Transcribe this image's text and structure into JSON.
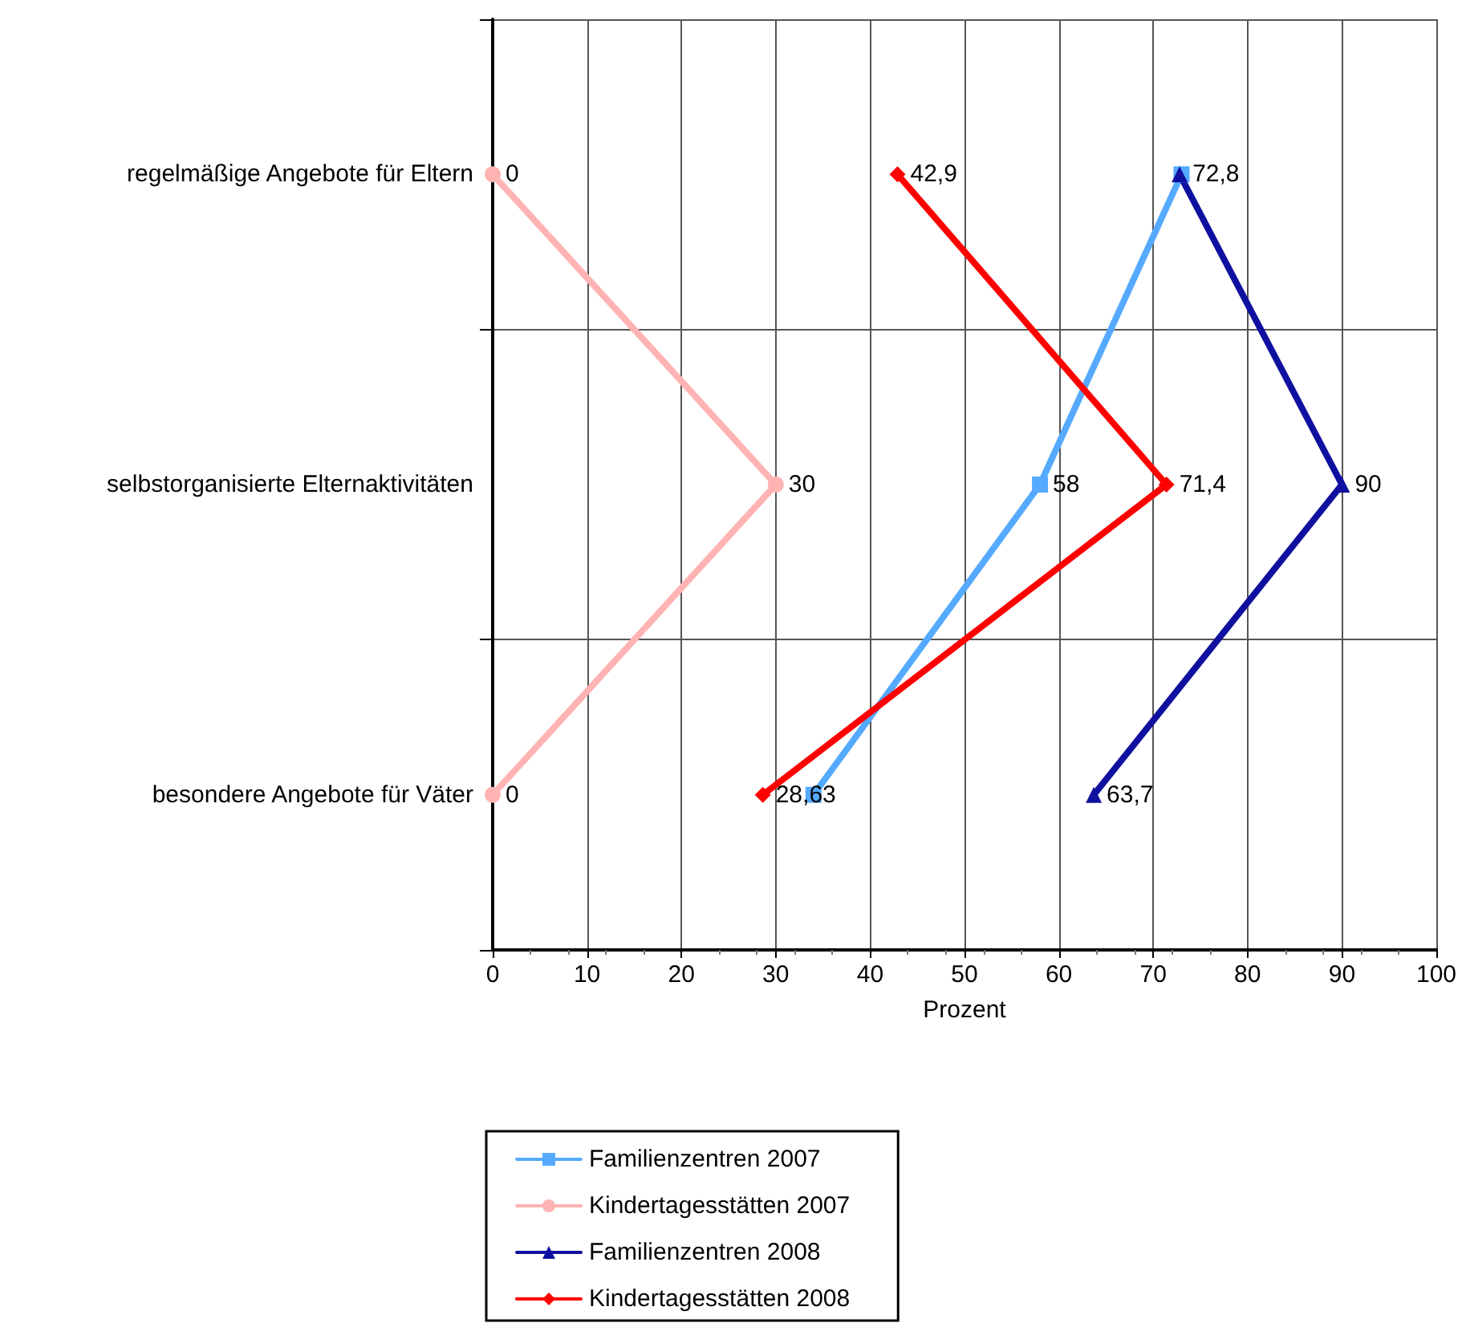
{
  "chart_data": {
    "type": "line",
    "orientation": "horizontal",
    "xlabel": "Prozent",
    "categories": [
      "regelmäßige Angebote für Eltern",
      "selbstorganisierte Elternaktivitäten",
      "besondere Angebote für Väter"
    ],
    "xlim": [
      0,
      100
    ],
    "xticks": [
      0,
      10,
      20,
      30,
      40,
      50,
      60,
      70,
      80,
      90,
      100
    ],
    "grid": true,
    "legend": "bottom",
    "series": [
      {
        "name": "Familienzentren 2007",
        "color": "#55aaff",
        "marker": "square",
        "values": [
          73,
          58,
          34
        ],
        "value_labels": [
          null,
          "58",
          null
        ]
      },
      {
        "name": "Kindertagesstätten 2007",
        "color": "#ffb3b3",
        "marker": "circle",
        "values": [
          0,
          30,
          0
        ],
        "value_labels": [
          "0",
          "30",
          "0"
        ]
      },
      {
        "name": "Familienzentren 2008",
        "color": "#1010a0",
        "marker": "triangle",
        "values": [
          72.8,
          90,
          63.7
        ],
        "value_labels": [
          "72,8",
          "90",
          "63,7"
        ]
      },
      {
        "name": "Kindertagesstätten 2008",
        "color": "#ff0000",
        "marker": "diamond",
        "values": [
          42.9,
          71.4,
          28.63
        ],
        "value_labels": [
          "42,9",
          "71,4",
          "28,63"
        ]
      }
    ]
  }
}
